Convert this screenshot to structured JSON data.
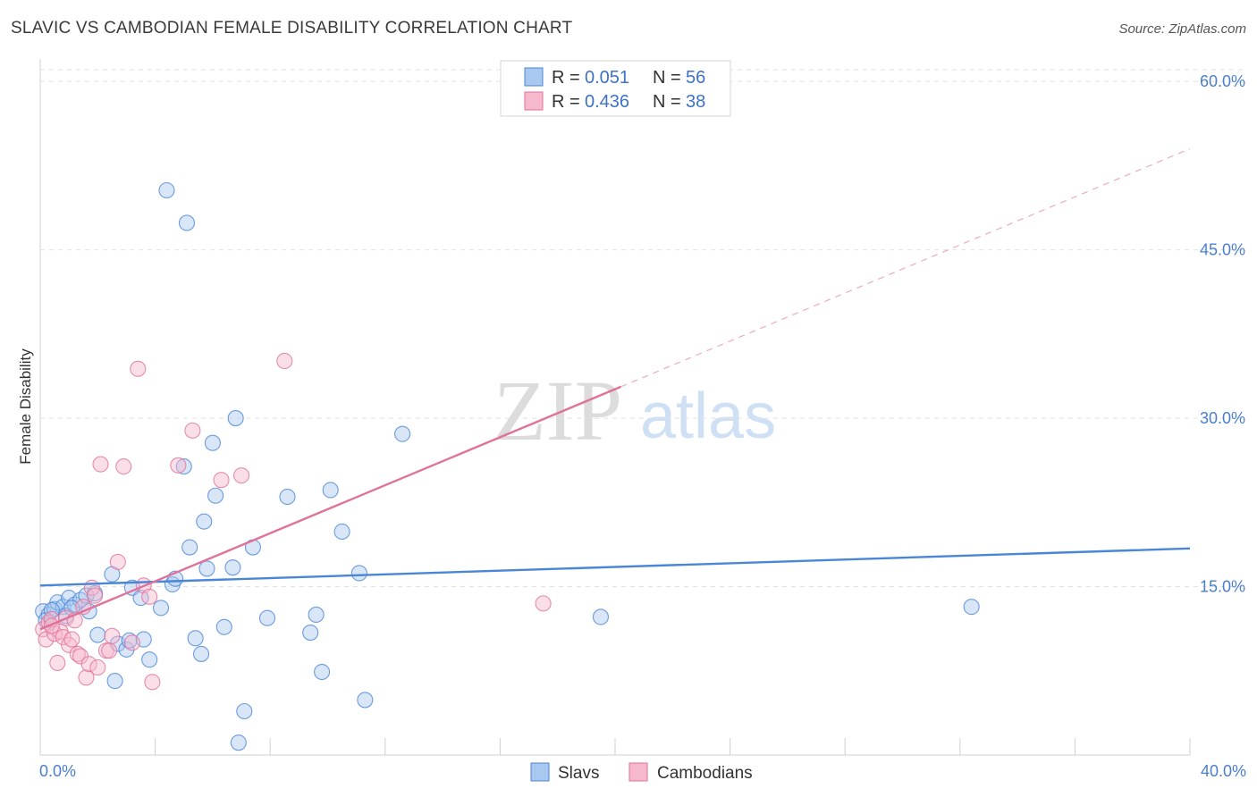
{
  "header": {
    "title": "SLAVIC VS CAMBODIAN FEMALE DISABILITY CORRELATION CHART",
    "source": "Source: ZipAtlas.com"
  },
  "watermark": {
    "zip": "ZIP",
    "atlas": "atlas"
  },
  "legend": {
    "rows": [
      {
        "r_label": "R =",
        "r_value": "0.051",
        "n_label": "N =",
        "n_value": "56"
      },
      {
        "r_label": "R =",
        "r_value": "0.436",
        "n_label": "N =",
        "n_value": "38"
      }
    ]
  },
  "bottom_legend": {
    "series0": "Slavs",
    "series1": "Cambodians"
  },
  "chart_data": {
    "type": "scatter",
    "title": "SLAVIC VS CAMBODIAN FEMALE DISABILITY CORRELATION CHART",
    "xlabel": "",
    "ylabel": "Female Disability",
    "xlim": [
      0,
      40
    ],
    "ylim": [
      0,
      62
    ],
    "x_tick_labels": [
      "0.0%",
      "40.0%"
    ],
    "y_ticks": [
      15,
      30,
      45,
      60
    ],
    "y_tick_labels": [
      "15.0%",
      "30.0%",
      "45.0%",
      "60.0%"
    ],
    "colors": {
      "slavs": "#4a86d8",
      "slavs_fill": "#a9c8ef",
      "cambodians": "#e0729a",
      "cambodians_fill": "#f6b8cc"
    },
    "series": [
      {
        "name": "Slavs",
        "R": 0.051,
        "N": 56,
        "trend": {
          "x0": 0,
          "y0": 15.1,
          "x1": 40,
          "y1": 18.4,
          "dashed_from": null
        },
        "points": [
          [
            0.1,
            12.8
          ],
          [
            0.3,
            12.5
          ],
          [
            0.5,
            13.0
          ],
          [
            0.6,
            13.6
          ],
          [
            0.8,
            13.2
          ],
          [
            0.9,
            12.4
          ],
          [
            1.0,
            14.0
          ],
          [
            1.2,
            13.4
          ],
          [
            1.4,
            13.8
          ],
          [
            1.6,
            14.2
          ],
          [
            1.7,
            12.8
          ],
          [
            1.9,
            14.4
          ],
          [
            2.0,
            10.7
          ],
          [
            2.5,
            16.1
          ],
          [
            2.6,
            6.6
          ],
          [
            2.7,
            9.9
          ],
          [
            3.0,
            9.4
          ],
          [
            3.1,
            10.2
          ],
          [
            3.2,
            14.9
          ],
          [
            3.5,
            14.0
          ],
          [
            3.6,
            10.3
          ],
          [
            3.8,
            8.5
          ],
          [
            4.2,
            13.1
          ],
          [
            4.4,
            50.3
          ],
          [
            4.6,
            15.2
          ],
          [
            4.7,
            15.7
          ],
          [
            5.0,
            25.7
          ],
          [
            5.1,
            47.4
          ],
          [
            5.2,
            18.5
          ],
          [
            5.4,
            10.4
          ],
          [
            5.6,
            9.0
          ],
          [
            5.7,
            20.8
          ],
          [
            5.8,
            16.6
          ],
          [
            6.0,
            27.8
          ],
          [
            6.1,
            23.1
          ],
          [
            6.4,
            11.4
          ],
          [
            6.7,
            16.7
          ],
          [
            6.8,
            30.0
          ],
          [
            6.9,
            1.1
          ],
          [
            7.1,
            3.9
          ],
          [
            7.4,
            18.5
          ],
          [
            7.9,
            12.2
          ],
          [
            8.6,
            23.0
          ],
          [
            9.4,
            10.9
          ],
          [
            9.6,
            12.5
          ],
          [
            9.8,
            7.4
          ],
          [
            10.1,
            23.6
          ],
          [
            10.5,
            19.9
          ],
          [
            11.1,
            16.2
          ],
          [
            11.3,
            4.9
          ],
          [
            12.6,
            28.6
          ],
          [
            19.5,
            12.3
          ],
          [
            32.4,
            13.2
          ],
          [
            0.2,
            12.0
          ],
          [
            1.1,
            13.1
          ],
          [
            0.4,
            12.9
          ]
        ]
      },
      {
        "name": "Cambodians",
        "R": 0.436,
        "N": 38,
        "trend": {
          "x0": 0,
          "y0": 11.2,
          "x1": 20.2,
          "y1": 32.8,
          "dashed_to_x": 40,
          "dashed_to_y": 54.0
        },
        "points": [
          [
            0.1,
            11.2
          ],
          [
            0.2,
            10.3
          ],
          [
            0.3,
            11.8
          ],
          [
            0.4,
            12.1
          ],
          [
            0.5,
            10.8
          ],
          [
            0.6,
            8.2
          ],
          [
            0.7,
            11.0
          ],
          [
            0.8,
            10.5
          ],
          [
            0.9,
            12.2
          ],
          [
            1.0,
            9.8
          ],
          [
            1.1,
            10.3
          ],
          [
            1.2,
            12.0
          ],
          [
            1.3,
            9.0
          ],
          [
            1.4,
            8.8
          ],
          [
            1.5,
            13.2
          ],
          [
            1.6,
            6.9
          ],
          [
            1.7,
            8.1
          ],
          [
            1.8,
            14.9
          ],
          [
            1.9,
            14.2
          ],
          [
            2.0,
            7.8
          ],
          [
            2.1,
            25.9
          ],
          [
            2.3,
            9.3
          ],
          [
            2.4,
            9.3
          ],
          [
            2.5,
            10.6
          ],
          [
            2.7,
            17.2
          ],
          [
            2.9,
            25.7
          ],
          [
            3.2,
            10.0
          ],
          [
            3.4,
            34.4
          ],
          [
            3.6,
            15.1
          ],
          [
            3.8,
            14.1
          ],
          [
            3.9,
            6.5
          ],
          [
            4.8,
            25.8
          ],
          [
            5.3,
            28.9
          ],
          [
            6.3,
            24.5
          ],
          [
            7.0,
            24.9
          ],
          [
            8.5,
            35.1
          ],
          [
            17.5,
            13.5
          ],
          [
            0.4,
            11.5
          ]
        ]
      }
    ]
  }
}
